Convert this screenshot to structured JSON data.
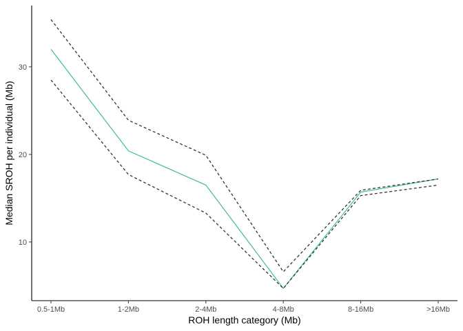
{
  "chart_data": {
    "type": "line",
    "title": "",
    "xlabel": "ROH length category (Mb)",
    "ylabel": "Median SROH per individual (Mb)",
    "categories": [
      "0.5-1Mb",
      "1-2Mb",
      "2-4Mb",
      "4-8Mb",
      "8-16Mb",
      ">16Mb"
    ],
    "ylim": [
      3.3,
      37.0
    ],
    "yticks": [
      10,
      20,
      30
    ],
    "grid": false,
    "legend": "none",
    "series": [
      {
        "role": "median",
        "color": "#3dbf95",
        "dash": "solid",
        "values": [
          32.0,
          20.4,
          16.5,
          4.7,
          15.7,
          17.2
        ]
      },
      {
        "role": "upper",
        "color": "#333333",
        "dash": "dashed",
        "values": [
          35.4,
          23.9,
          19.9,
          6.6,
          15.9,
          17.2
        ]
      },
      {
        "role": "lower",
        "color": "#333333",
        "dash": "dashed",
        "values": [
          28.5,
          17.7,
          13.3,
          4.7,
          15.3,
          16.5
        ]
      }
    ]
  }
}
